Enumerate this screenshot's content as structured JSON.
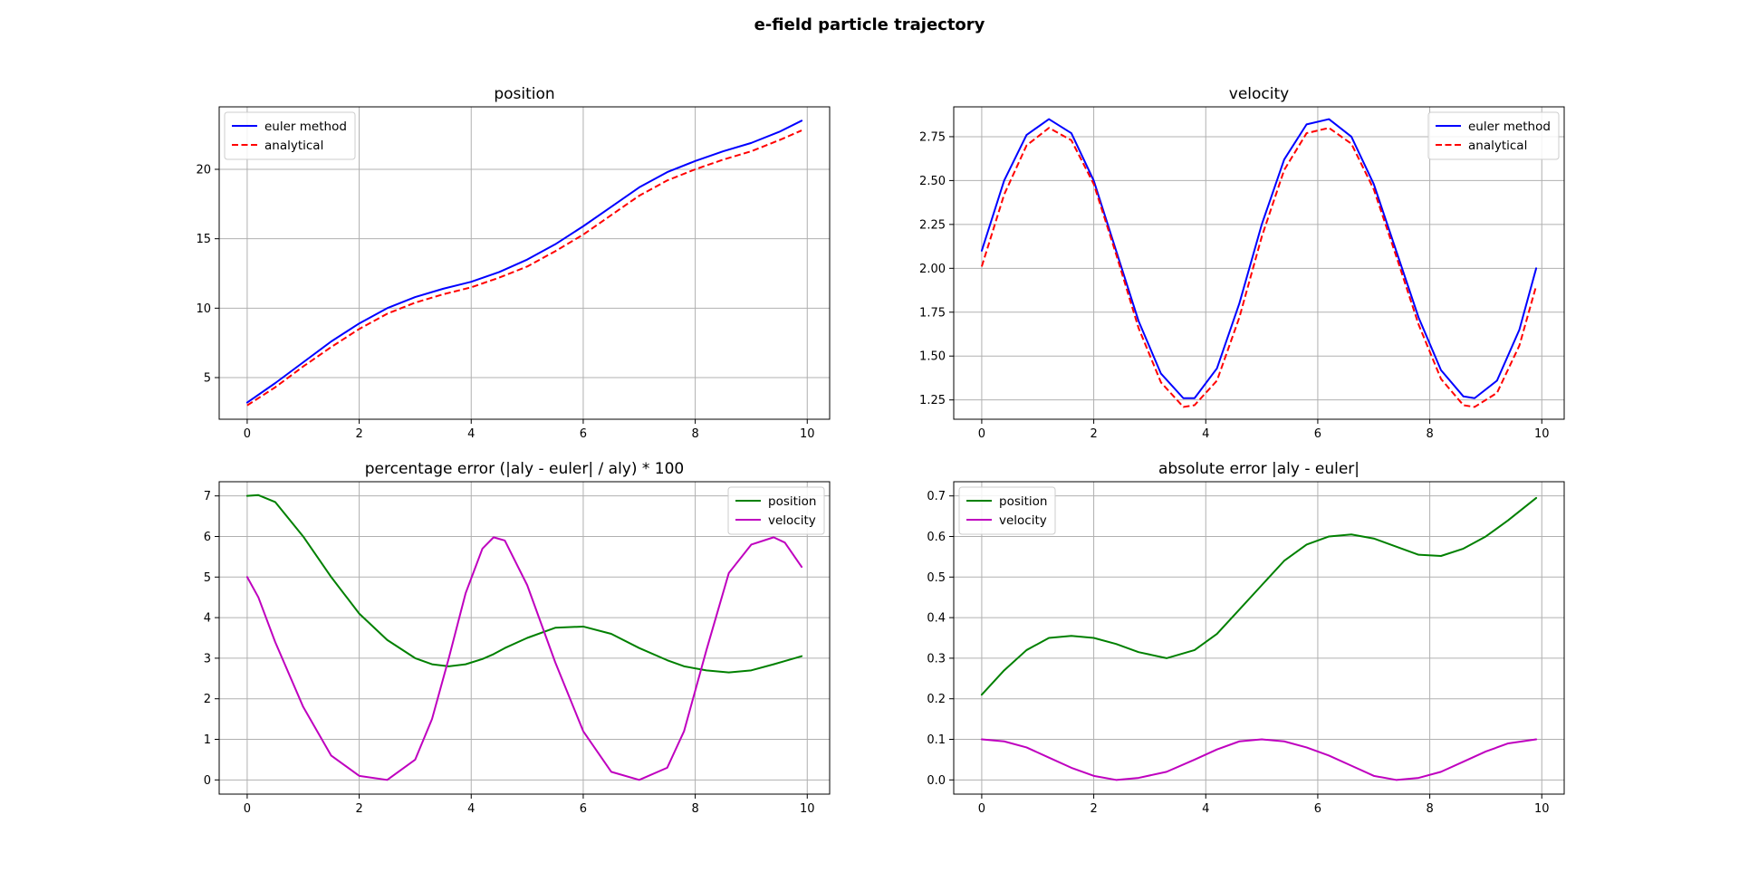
{
  "figure": {
    "suptitle": "e-field particle trajectory"
  },
  "chart_data": [
    {
      "type": "line",
      "title": "position",
      "xlabel": "",
      "ylabel": "",
      "xlim": [
        -0.5,
        10.4
      ],
      "ylim": [
        2.0,
        24.5
      ],
      "x_ticks": [
        0,
        2,
        4,
        6,
        8,
        10
      ],
      "y_ticks": [
        5,
        10,
        15,
        20
      ],
      "grid": true,
      "legend": "top-left",
      "x": [
        0,
        0.5,
        1,
        1.5,
        2,
        2.5,
        3,
        3.5,
        4,
        4.5,
        5,
        5.5,
        6,
        6.5,
        7,
        7.5,
        8,
        8.5,
        9,
        9.5,
        9.9
      ],
      "series": [
        {
          "name": "euler method",
          "color": "#0000ff",
          "dash": "solid",
          "values": [
            3.2,
            4.6,
            6.1,
            7.6,
            8.9,
            10.0,
            10.8,
            11.4,
            11.9,
            12.6,
            13.5,
            14.6,
            15.9,
            17.3,
            18.7,
            19.8,
            20.6,
            21.3,
            21.9,
            22.7,
            23.5
          ]
        },
        {
          "name": "analytical",
          "color": "#ff0000",
          "dash": "dashed",
          "values": [
            3.0,
            4.3,
            5.8,
            7.2,
            8.5,
            9.6,
            10.4,
            11.0,
            11.5,
            12.2,
            13.0,
            14.1,
            15.3,
            16.7,
            18.1,
            19.2,
            20.0,
            20.7,
            21.3,
            22.1,
            22.8
          ]
        }
      ]
    },
    {
      "type": "line",
      "title": "velocity",
      "xlabel": "",
      "ylabel": "",
      "xlim": [
        -0.5,
        10.4
      ],
      "ylim": [
        1.14,
        2.92
      ],
      "x_ticks": [
        0,
        2,
        4,
        6,
        8,
        10
      ],
      "y_ticks": [
        1.25,
        1.5,
        1.75,
        2.0,
        2.25,
        2.5,
        2.75
      ],
      "y_tick_labels": [
        "1.25",
        "1.50",
        "1.75",
        "2.00",
        "2.25",
        "2.50",
        "2.75"
      ],
      "grid": true,
      "legend": "top-right",
      "x": [
        0,
        0.4,
        0.8,
        1.2,
        1.6,
        2.0,
        2.4,
        2.8,
        3.2,
        3.6,
        3.8,
        4.2,
        4.6,
        5.0,
        5.4,
        5.8,
        6.2,
        6.6,
        7.0,
        7.4,
        7.8,
        8.2,
        8.6,
        8.8,
        9.2,
        9.6,
        9.9
      ],
      "series": [
        {
          "name": "euler method",
          "color": "#0000ff",
          "dash": "solid",
          "values": [
            2.1,
            2.5,
            2.76,
            2.85,
            2.77,
            2.5,
            2.1,
            1.7,
            1.4,
            1.26,
            1.26,
            1.43,
            1.8,
            2.25,
            2.62,
            2.82,
            2.85,
            2.75,
            2.48,
            2.1,
            1.72,
            1.42,
            1.27,
            1.26,
            1.36,
            1.65,
            2.0
          ]
        },
        {
          "name": "analytical",
          "color": "#ff0000",
          "dash": "dashed",
          "values": [
            2.01,
            2.42,
            2.7,
            2.8,
            2.73,
            2.48,
            2.08,
            1.66,
            1.35,
            1.21,
            1.22,
            1.36,
            1.72,
            2.18,
            2.56,
            2.77,
            2.8,
            2.71,
            2.45,
            2.07,
            1.68,
            1.37,
            1.22,
            1.21,
            1.29,
            1.56,
            1.9
          ]
        }
      ]
    },
    {
      "type": "line",
      "title": "percentage error (|aly - euler| / aly) * 100",
      "xlabel": "",
      "ylabel": "",
      "xlim": [
        -0.5,
        10.4
      ],
      "ylim": [
        -0.35,
        7.35
      ],
      "x_ticks": [
        0,
        2,
        4,
        6,
        8,
        10
      ],
      "y_ticks": [
        0,
        1,
        2,
        3,
        4,
        5,
        6,
        7
      ],
      "grid": true,
      "legend": "top-right",
      "x": [
        0,
        0.2,
        0.5,
        1,
        1.5,
        2,
        2.5,
        3,
        3.3,
        3.6,
        3.9,
        4.2,
        4.4,
        4.6,
        5.0,
        5.5,
        6.0,
        6.5,
        7.0,
        7.5,
        7.8,
        8.2,
        8.6,
        9.0,
        9.4,
        9.6,
        9.9
      ],
      "series": [
        {
          "name": "position",
          "color": "#008000",
          "dash": "solid",
          "values": [
            7.0,
            7.02,
            6.85,
            6.0,
            5.0,
            4.1,
            3.45,
            3.0,
            2.85,
            2.8,
            2.85,
            2.98,
            3.1,
            3.25,
            3.5,
            3.75,
            3.78,
            3.6,
            3.25,
            2.95,
            2.8,
            2.7,
            2.65,
            2.7,
            2.85,
            2.93,
            3.05
          ]
        },
        {
          "name": "velocity",
          "color": "#bf00bf",
          "dash": "solid",
          "values": [
            5.0,
            4.5,
            3.4,
            1.8,
            0.6,
            0.1,
            0.0,
            0.5,
            1.5,
            3.0,
            4.6,
            5.7,
            5.98,
            5.9,
            4.8,
            2.9,
            1.2,
            0.2,
            0.0,
            0.3,
            1.2,
            3.2,
            5.1,
            5.8,
            5.98,
            5.85,
            5.25
          ]
        }
      ]
    },
    {
      "type": "line",
      "title": "absolute error |aly - euler|",
      "xlabel": "",
      "ylabel": "",
      "xlim": [
        -0.5,
        10.4
      ],
      "ylim": [
        -0.035,
        0.735
      ],
      "x_ticks": [
        0,
        2,
        4,
        6,
        8,
        10
      ],
      "y_ticks": [
        0.0,
        0.1,
        0.2,
        0.3,
        0.4,
        0.5,
        0.6,
        0.7
      ],
      "y_tick_labels": [
        "0.0",
        "0.1",
        "0.2",
        "0.3",
        "0.4",
        "0.5",
        "0.6",
        "0.7"
      ],
      "grid": true,
      "legend": "top-left",
      "x": [
        0,
        0.4,
        0.8,
        1.2,
        1.6,
        2.0,
        2.4,
        2.8,
        3.3,
        3.8,
        4.2,
        4.6,
        5.0,
        5.4,
        5.8,
        6.2,
        6.6,
        7.0,
        7.4,
        7.8,
        8.2,
        8.6,
        9.0,
        9.4,
        9.9
      ],
      "series": [
        {
          "name": "position",
          "color": "#008000",
          "dash": "solid",
          "values": [
            0.21,
            0.27,
            0.32,
            0.35,
            0.355,
            0.35,
            0.335,
            0.315,
            0.3,
            0.32,
            0.36,
            0.42,
            0.48,
            0.54,
            0.58,
            0.6,
            0.605,
            0.595,
            0.575,
            0.555,
            0.552,
            0.57,
            0.6,
            0.64,
            0.695
          ]
        },
        {
          "name": "velocity",
          "color": "#bf00bf",
          "dash": "solid",
          "values": [
            0.1,
            0.095,
            0.08,
            0.055,
            0.03,
            0.01,
            0.0,
            0.005,
            0.02,
            0.05,
            0.075,
            0.095,
            0.1,
            0.095,
            0.08,
            0.06,
            0.035,
            0.01,
            0.0,
            0.005,
            0.02,
            0.045,
            0.07,
            0.09,
            0.1
          ]
        }
      ]
    }
  ]
}
